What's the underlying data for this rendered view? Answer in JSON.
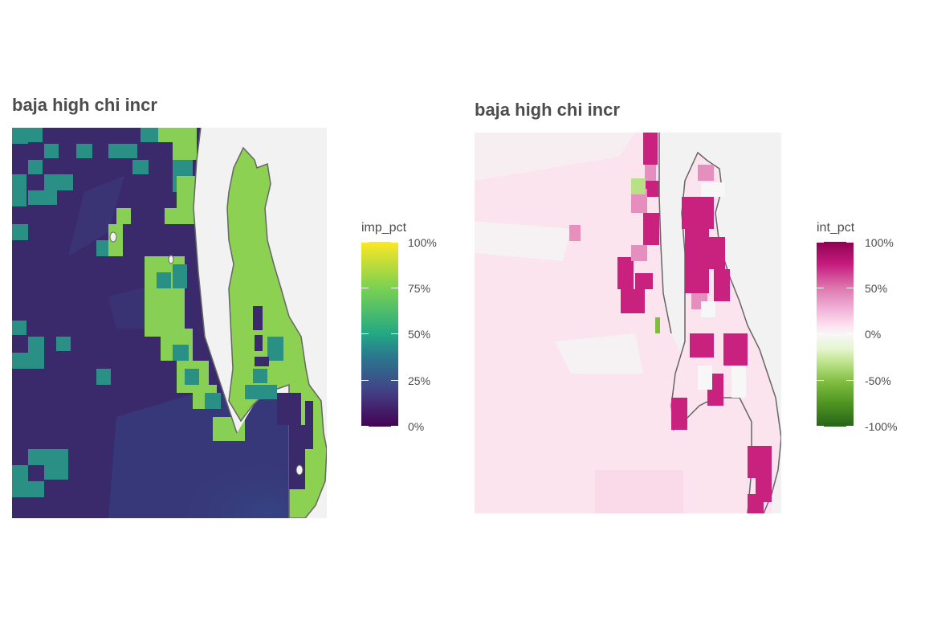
{
  "panels": [
    {
      "title": "baja high chi incr",
      "legend": {
        "title": "imp_pct",
        "labels": [
          "100%",
          "75%",
          "50%",
          "25%",
          "0%"
        ],
        "colors": [
          "#fde725",
          "#7ad151",
          "#22a884",
          "#2a788e",
          "#414487",
          "#440154"
        ]
      }
    },
    {
      "title": "baja high chi incr",
      "legend": {
        "title": "int_pct",
        "labels": [
          "100%",
          "50%",
          "0%",
          "-50%",
          "-100%"
        ],
        "colors": [
          "#8e0152",
          "#c51b7d",
          "#de77ae",
          "#f1b6da",
          "#fde0ef",
          "#f7f7f7",
          "#e6f5d0",
          "#b8e186",
          "#7fbc41",
          "#4d9221",
          "#276419"
        ]
      }
    }
  ],
  "colors": {
    "land": "#f2f2f2",
    "coastline": "#666666",
    "imp_low": "#3b2a6e",
    "imp_mid": "#33608a",
    "imp_teal": "#2a9184",
    "imp_high": "#8dd152",
    "int_pale": "#fbe5ef",
    "int_high": "#c8227e",
    "int_mid": "#e58fbe",
    "int_neg": "#b8e186"
  }
}
